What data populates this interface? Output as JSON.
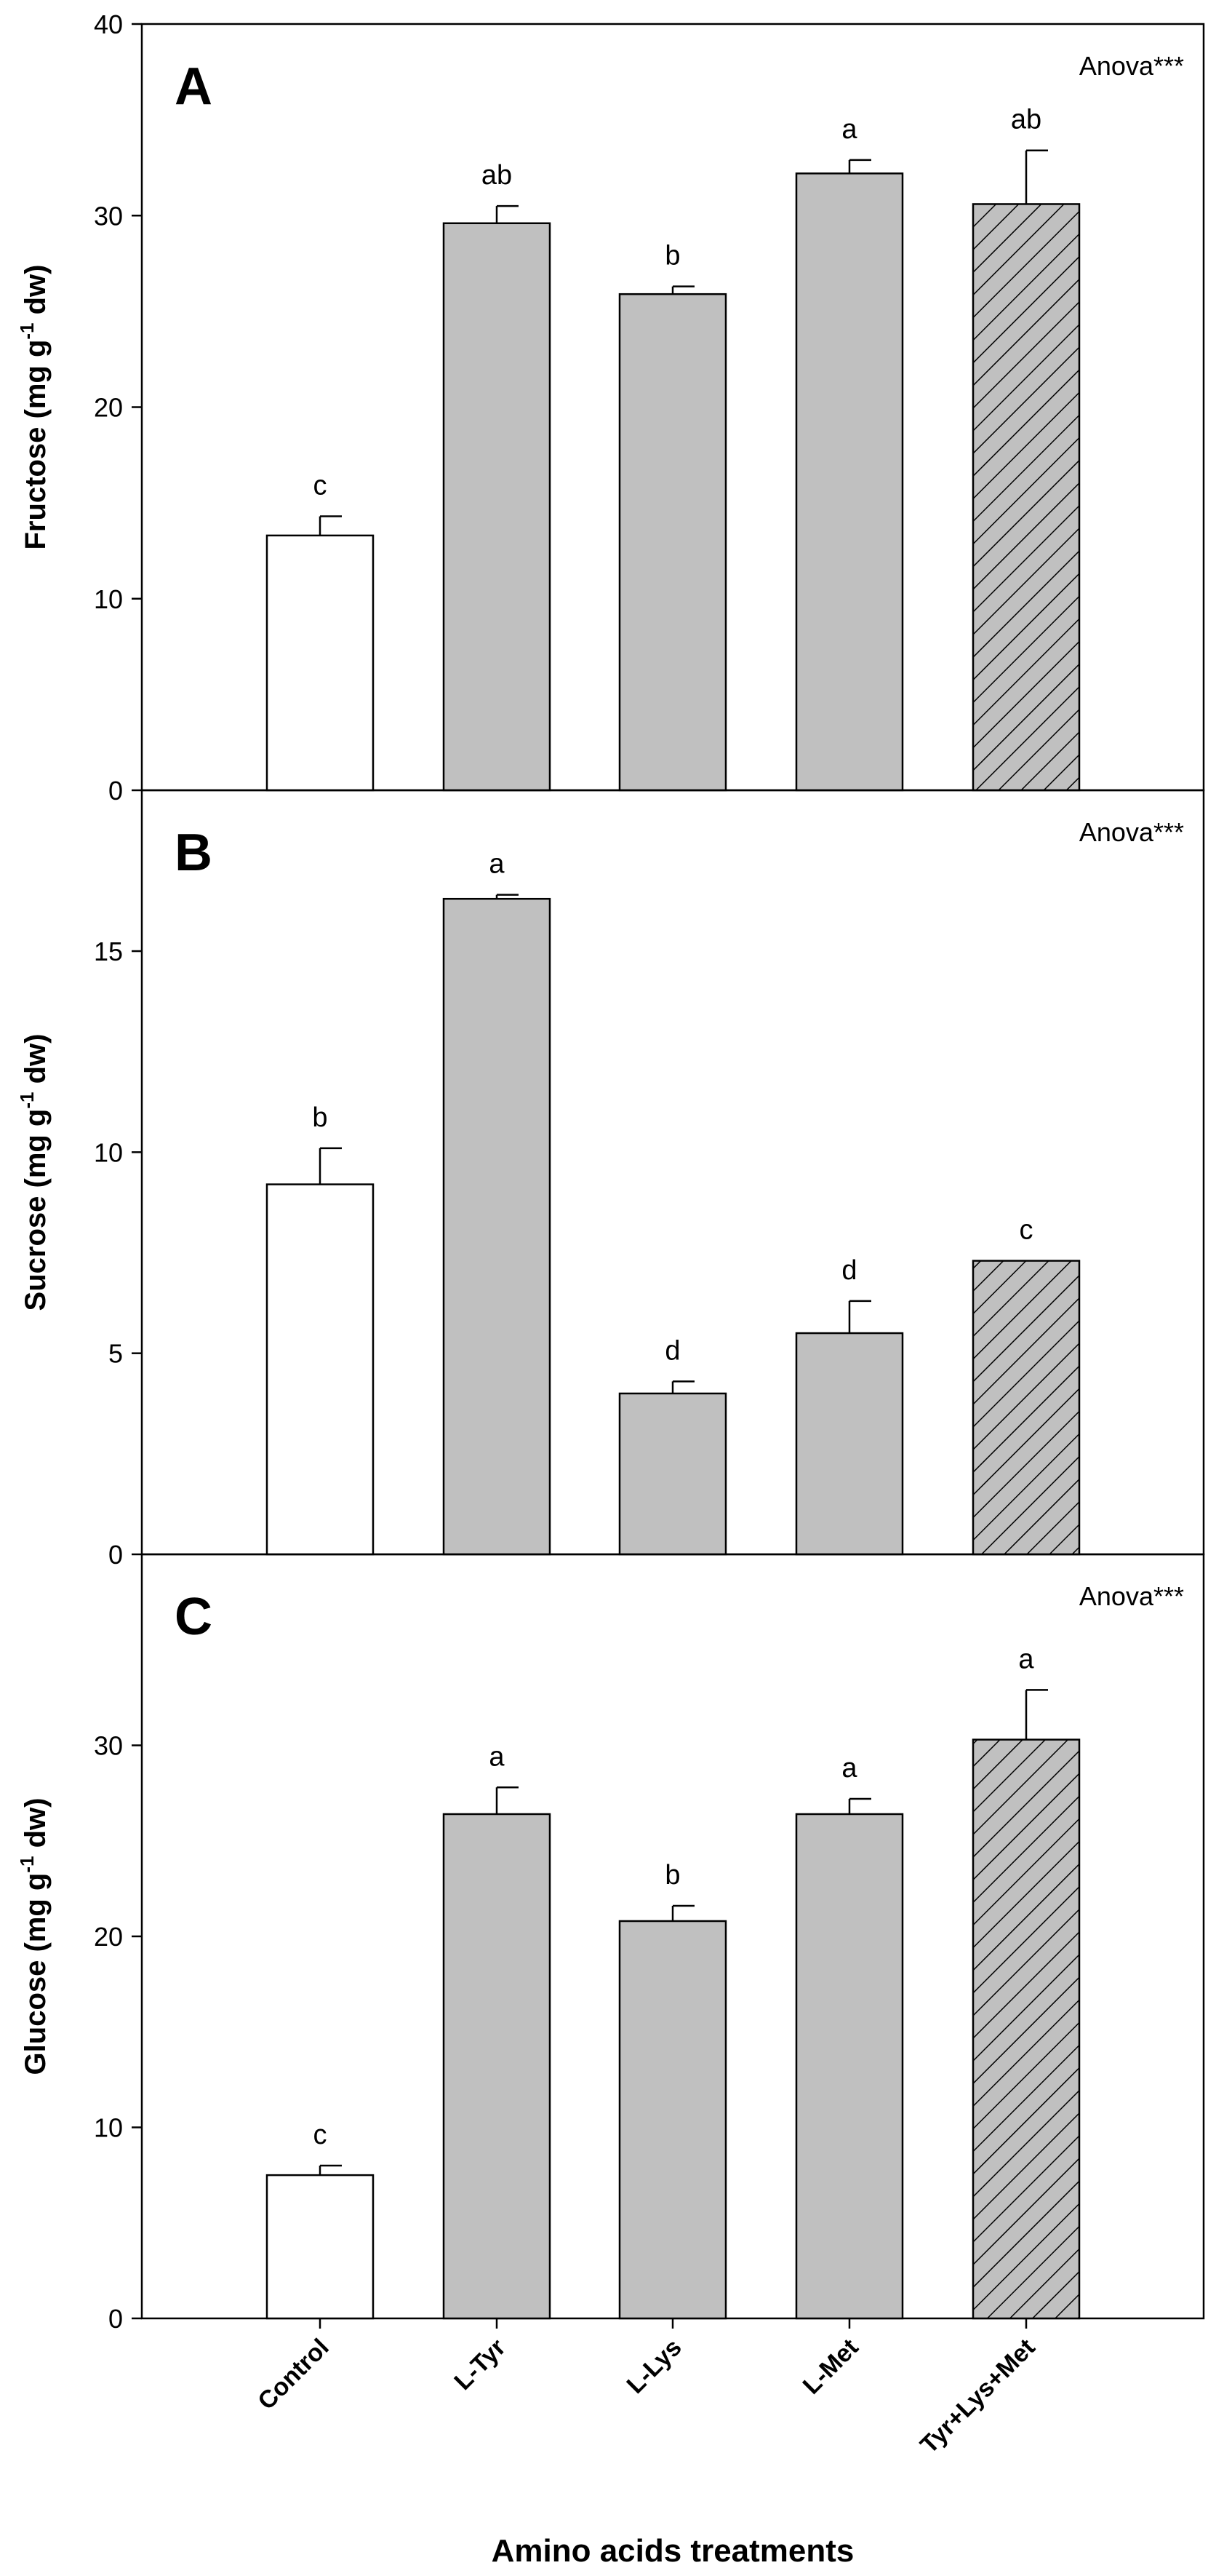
{
  "figure": {
    "xlabel": "Amino acids treatments",
    "categories": [
      "Control",
      "L-Tyr",
      "L-Lys",
      "L-Met",
      "Tyr+Lys+Met"
    ],
    "bar_styles": [
      "white",
      "gray",
      "gray",
      "gray",
      "hatched"
    ],
    "colors": {
      "white": "#ffffff",
      "gray": "#c0c0c0",
      "hatch_bg": "#c0c0c0",
      "hatch_line": "#000000",
      "axis": "#000000"
    }
  },
  "chart_data": [
    {
      "type": "bar",
      "panel": "A",
      "stat_label": "Anova***",
      "ylabel_main": "Fructose (mg g",
      "ylabel_sup": "-1",
      "ylabel_tail": " dw)",
      "categories": [
        "Control",
        "L-Tyr",
        "L-Lys",
        "L-Met",
        "Tyr+Lys+Met"
      ],
      "values": [
        13.3,
        29.6,
        25.9,
        32.2,
        30.6
      ],
      "errors": [
        1.0,
        0.9,
        0.4,
        0.7,
        2.8
      ],
      "letters": [
        "c",
        "ab",
        "b",
        "a",
        "ab"
      ],
      "ylim": [
        0,
        40
      ],
      "yticks": [
        0,
        10,
        20,
        30,
        40
      ]
    },
    {
      "type": "bar",
      "panel": "B",
      "stat_label": "Anova***",
      "ylabel_main": "Sucrose (mg g",
      "ylabel_sup": "-1",
      "ylabel_tail": " dw)",
      "categories": [
        "Control",
        "L-Tyr",
        "L-Lys",
        "L-Met",
        "Tyr+Lys+Met"
      ],
      "values": [
        9.2,
        16.3,
        4.0,
        5.5,
        7.3
      ],
      "errors": [
        0.9,
        0.1,
        0.3,
        0.8,
        0.0
      ],
      "letters": [
        "b",
        "a",
        "d",
        "d",
        "c"
      ],
      "ylim": [
        0,
        19
      ],
      "yticks": [
        0,
        5,
        10,
        15
      ]
    },
    {
      "type": "bar",
      "panel": "C",
      "stat_label": "Anova***",
      "ylabel_main": "Glucose (mg g",
      "ylabel_sup": "-1",
      "ylabel_tail": " dw)",
      "categories": [
        "Control",
        "L-Tyr",
        "L-Lys",
        "L-Met",
        "Tyr+Lys+Met"
      ],
      "values": [
        7.5,
        26.4,
        20.8,
        26.4,
        30.3
      ],
      "errors": [
        0.5,
        1.4,
        0.8,
        0.8,
        2.6
      ],
      "letters": [
        "c",
        "a",
        "b",
        "a",
        "a"
      ],
      "ylim": [
        0,
        40
      ],
      "yticks": [
        0,
        10,
        20,
        30
      ]
    }
  ]
}
